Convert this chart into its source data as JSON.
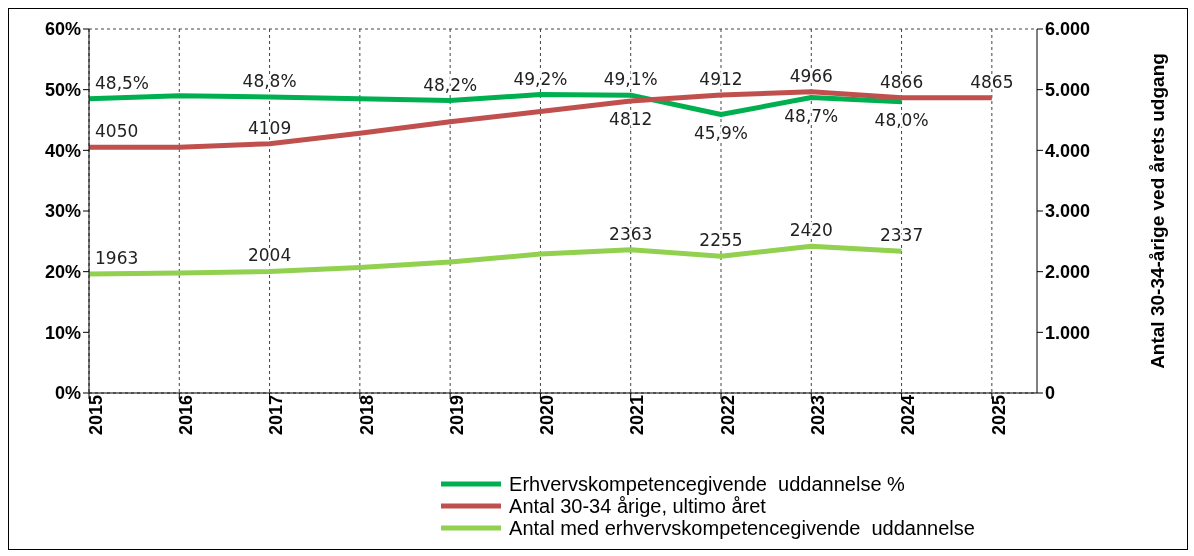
{
  "chart_data": {
    "type": "line",
    "x": [
      2015,
      2016,
      2017,
      2018,
      2019,
      2020,
      2021,
      2022,
      2023,
      2024,
      2025
    ],
    "xlim": [
      2015,
      2025.5
    ],
    "xticks": [
      2015,
      2016,
      2017,
      2018,
      2019,
      2020,
      2021,
      2022,
      2023,
      2024,
      2025
    ],
    "ylim": [
      0,
      60
    ],
    "yticks": [
      {
        "value": 0,
        "label": "0%"
      },
      {
        "value": 10,
        "label": "10%"
      },
      {
        "value": 20,
        "label": "20%"
      },
      {
        "value": 30,
        "label": "30%"
      },
      {
        "value": 40,
        "label": "40%"
      },
      {
        "value": 50,
        "label": "50%"
      },
      {
        "value": 60,
        "label": "60%"
      }
    ],
    "y2lim": [
      0,
      6000
    ],
    "y2ticks": [
      0,
      {
        "value": 1000,
        "label": "1.000"
      },
      {
        "value": 2000,
        "label": "2.000"
      },
      {
        "value": 3000,
        "label": "3.000"
      },
      {
        "value": 4000,
        "label": "4.000"
      },
      {
        "value": 5000,
        "label": "5.000"
      },
      {
        "value": 6000,
        "label": "6.000"
      }
    ],
    "y2label": "Antal 30-34-årige ved årets udgang",
    "grid": true,
    "legend": "bottom",
    "marker": "none",
    "line_style": "solid",
    "series": [
      {
        "name": "Erhvervskompetencegivende  uddannelse %",
        "color": "#00b050",
        "values": [
          48.5,
          49.0,
          48.8,
          48.5,
          48.2,
          49.2,
          49.1,
          45.9,
          48.7,
          48.0,
          null
        ],
        "value_labels": [
          "48,5%",
          null,
          "48,8%",
          null,
          "48,2%",
          "49,2%",
          "49,1%",
          "45,9%",
          "48,7%",
          "48,0%",
          null
        ]
      },
      {
        "name": "Antal 30-34 årige, ultimo året",
        "color": "#c0504d",
        "axis": "y2",
        "values": [
          4050,
          4050,
          4109,
          4280,
          4470,
          4640,
          4812,
          4912,
          4966,
          4866,
          4865
        ],
        "value_labels": [
          "4050",
          null,
          "4109",
          null,
          null,
          null,
          "4812",
          "4912",
          "4966",
          "4866",
          "4865"
        ]
      },
      {
        "name": "Antal med erhvervskompetencegivende  uddannelse",
        "color": "#92d050",
        "axis": "y2",
        "values": [
          1963,
          1980,
          2004,
          2070,
          2160,
          2290,
          2363,
          2255,
          2420,
          2337,
          null
        ],
        "value_labels": [
          "1963",
          null,
          "2004",
          null,
          null,
          null,
          "2363",
          "2255",
          "2420",
          "2337",
          null
        ]
      }
    ]
  }
}
